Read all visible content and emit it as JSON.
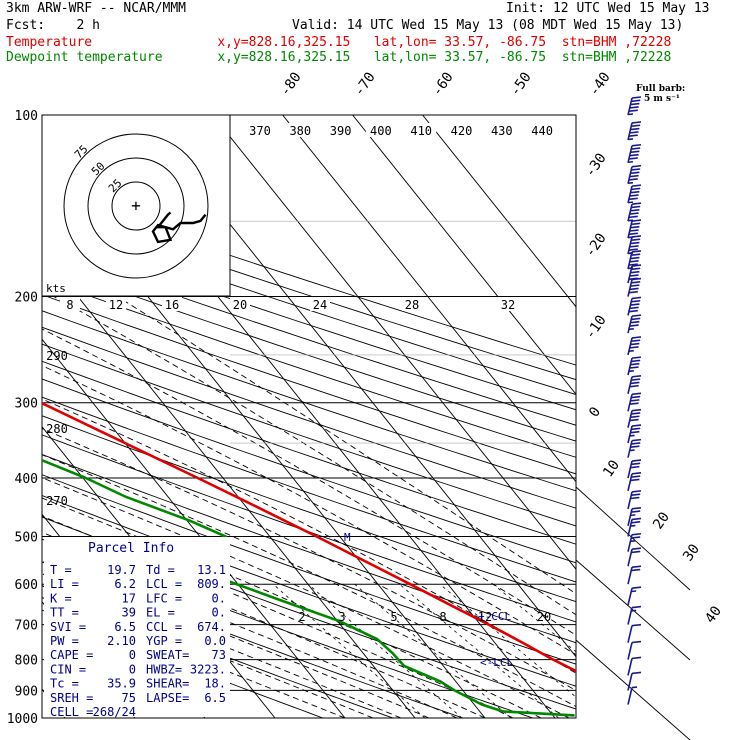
{
  "header": {
    "title": "3km ARW-WRF -- NCAR/MMM",
    "init": "Init: 12 UTC Wed 15 May 13",
    "fcst": "Fcst:    2 h",
    "valid": "Valid: 14 UTC Wed 15 May 13 (08 MDT Wed 15 May 13)",
    "line_temp": "Temperature                x,y=828.16,325.15   lat,lon= 33.57, -86.75  stn=BHM ,72228",
    "line_dewp": "Dewpoint temperature       x,y=828.16,325.15   lat,lon= 33.57, -86.75  stn=BHM ,72228"
  },
  "colors": {
    "temperature": "#e00000",
    "dewpoint": "#008800",
    "parcel": "#00008b",
    "barb": "#1a1a8c",
    "hodograph": "#000000"
  },
  "barb_label": [
    "Full barb:",
    "5 m s⁻¹"
  ],
  "hodograph": {
    "units": "kts",
    "ring_labels": [
      "25",
      "50",
      "75"
    ],
    "trace_uv_kts": [
      [
        11,
        -6
      ],
      [
        9,
        -9
      ],
      [
        6,
        -10
      ],
      [
        1,
        -10
      ],
      [
        -2,
        -13
      ],
      [
        -8,
        -11
      ],
      [
        -10,
        -14
      ],
      [
        -8,
        -19
      ],
      [
        -3,
        -18
      ],
      [
        -5,
        -12
      ],
      [
        -8,
        -12
      ],
      [
        -6,
        -9
      ],
      [
        -4,
        -6
      ],
      [
        -3,
        -5
      ]
    ]
  },
  "parcel_info": {
    "title": "Parcel Info",
    "rows": [
      [
        "T  =",
        "19.7",
        "Td =",
        "13.1"
      ],
      [
        "LI =",
        "6.2",
        "LCL =",
        "809."
      ],
      [
        "K  =",
        "17",
        "LFC =",
        "0."
      ],
      [
        "TT =",
        "39",
        "EL  =",
        "0."
      ],
      [
        "SVI =",
        "6.5",
        "CCL =",
        "674."
      ],
      [
        "PW =",
        "2.10",
        "YGP =",
        "0.0"
      ],
      [
        "CAPE =",
        "0",
        "SWEAT=",
        "73"
      ],
      [
        "CIN =",
        "0",
        "HWBZ=",
        "3223."
      ],
      [
        "Tc =",
        "35.9",
        "SHEAR=",
        "18."
      ],
      [
        "SREH =",
        "75",
        "LAPSE=",
        "6.5"
      ],
      [
        "CELL =",
        "268/24",
        "",
        ""
      ]
    ]
  },
  "chart_data": {
    "type": "line",
    "title": "",
    "yaxis": "pressure (hPa), log scale",
    "pressure_levels": [
      100,
      200,
      300,
      400,
      500,
      600,
      700,
      800,
      900,
      1000
    ],
    "ylim": [
      1000,
      100
    ],
    "isotherm_labels": [
      "-80",
      "-70",
      "-60",
      "-50",
      "-40",
      "-30",
      "-20",
      "-10",
      "0",
      "10",
      "20",
      "30",
      "40"
    ],
    "theta_labels": [
      "370",
      "380",
      "390",
      "400",
      "410",
      "420",
      "430",
      "440"
    ],
    "mixing_ratio_labels": [
      "8",
      "12",
      "16",
      "20",
      "24",
      "28",
      "32"
    ],
    "mixing_ratio_lower_labels": [
      "2",
      "3",
      "5",
      "8",
      "12",
      "20"
    ],
    "dry_adiabat_labels": [
      "290",
      "280",
      "270"
    ],
    "annotations": [
      "CCL",
      "LCL",
      "M"
    ],
    "series": [
      {
        "name": "Temperature",
        "points": [
          [
            995,
            20.4
          ],
          [
            975,
            20.8
          ],
          [
            950,
            23.6
          ],
          [
            925,
            23.0
          ],
          [
            900,
            21.3
          ],
          [
            850,
            19.1
          ],
          [
            800,
            16.4
          ],
          [
            750,
            14.0
          ],
          [
            700,
            11.2
          ],
          [
            650,
            8.0
          ],
          [
            600,
            4.6
          ],
          [
            550,
            0.8
          ],
          [
            500,
            -3.3
          ],
          [
            450,
            -8.1
          ],
          [
            400,
            -13.6
          ],
          [
            350,
            -20.0
          ],
          [
            300,
            -27.4
          ],
          [
            250,
            -36.3
          ],
          [
            200,
            -46.4
          ],
          [
            180,
            -51.8
          ],
          [
            160,
            -57.1
          ],
          [
            150,
            -60.2
          ],
          [
            140,
            -62.8
          ],
          [
            125,
            -65.0
          ],
          [
            110,
            -64.6
          ],
          [
            100,
            -63.4
          ]
        ]
      },
      {
        "name": "Dewpoint temperature",
        "points": [
          [
            990,
            13.1
          ],
          [
            975,
            3.3
          ],
          [
            950,
            1.1
          ],
          [
            900,
            -1.2
          ],
          [
            870,
            -2.2
          ],
          [
            820,
            -5.6
          ],
          [
            780,
            -5.8
          ],
          [
            740,
            -6.4
          ],
          [
            690,
            -9.8
          ],
          [
            640,
            -15.5
          ],
          [
            590,
            -21.4
          ],
          [
            570,
            -28.4
          ],
          [
            560,
            -30.0
          ],
          [
            520,
            -21.5
          ],
          [
            500,
            -16.3
          ],
          [
            470,
            -19.7
          ],
          [
            430,
            -26.0
          ],
          [
            400,
            -29.6
          ],
          [
            340,
            -39.7
          ],
          [
            300,
            -45.5
          ],
          [
            265,
            -54.4
          ],
          [
            240,
            -60.2
          ],
          [
            200,
            -68.9
          ],
          [
            180,
            -70.8
          ],
          [
            160,
            -73.2
          ],
          [
            140,
            -76.0
          ],
          [
            120,
            -78.5
          ],
          [
            105,
            -78.9
          ],
          [
            100,
            -76.5
          ]
        ]
      }
    ],
    "wind_barbs_kts": [
      [
        100,
        60
      ],
      [
        110,
        60
      ],
      [
        120,
        55
      ],
      [
        130,
        55
      ],
      [
        140,
        55
      ],
      [
        150,
        55
      ],
      [
        160,
        55
      ],
      [
        170,
        55
      ],
      [
        180,
        55
      ],
      [
        190,
        50
      ],
      [
        200,
        50
      ],
      [
        215,
        50
      ],
      [
        230,
        45
      ],
      [
        250,
        45
      ],
      [
        270,
        45
      ],
      [
        290,
        40
      ],
      [
        310,
        40
      ],
      [
        330,
        40
      ],
      [
        350,
        35
      ],
      [
        370,
        35
      ],
      [
        400,
        30
      ],
      [
        420,
        30
      ],
      [
        450,
        30
      ],
      [
        480,
        25
      ],
      [
        500,
        25
      ],
      [
        530,
        25
      ],
      [
        560,
        20
      ],
      [
        600,
        20
      ],
      [
        650,
        15
      ],
      [
        700,
        15
      ],
      [
        750,
        10
      ],
      [
        800,
        10
      ],
      [
        850,
        10
      ],
      [
        900,
        10
      ],
      [
        950,
        5
      ]
    ]
  }
}
